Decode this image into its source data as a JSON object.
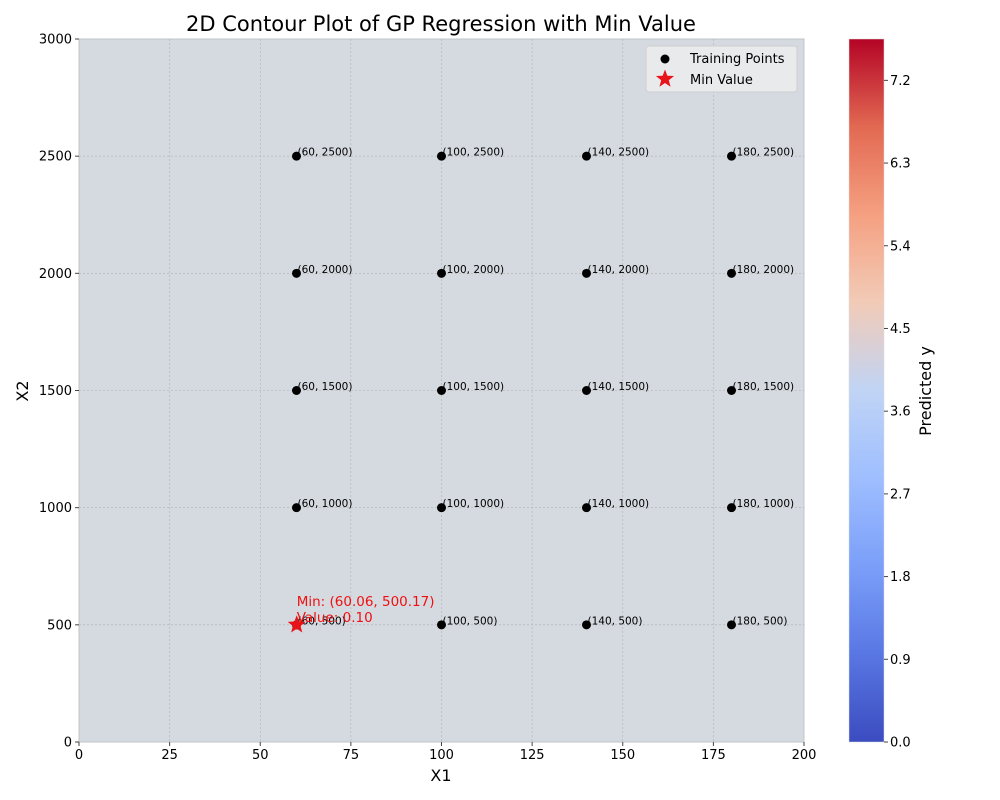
{
  "chart_data": {
    "type": "contour",
    "title": "2D Contour Plot of GP Regression with Min Value",
    "xlabel": "X1",
    "ylabel": "X2",
    "xlim": [
      0,
      200
    ],
    "ylim": [
      0,
      3000
    ],
    "xticks": [
      "0",
      "25",
      "50",
      "75",
      "100",
      "125",
      "150",
      "175",
      "200"
    ],
    "yticks": [
      "0",
      "500",
      "1000",
      "1500",
      "2000",
      "2500",
      "3000"
    ],
    "grid": true,
    "legend_position": "top-right",
    "legend": {
      "training": "Training Points",
      "min": "Min Value"
    },
    "training_points": [
      {
        "x": 60,
        "y": 2500,
        "label": "(60, 2500)"
      },
      {
        "x": 100,
        "y": 2500,
        "label": "(100, 2500)"
      },
      {
        "x": 140,
        "y": 2500,
        "label": "(140, 2500)"
      },
      {
        "x": 180,
        "y": 2500,
        "label": "(180, 2500)"
      },
      {
        "x": 60,
        "y": 2000,
        "label": "(60, 2000)"
      },
      {
        "x": 100,
        "y": 2000,
        "label": "(100, 2000)"
      },
      {
        "x": 140,
        "y": 2000,
        "label": "(140, 2000)"
      },
      {
        "x": 180,
        "y": 2000,
        "label": "(180, 2000)"
      },
      {
        "x": 60,
        "y": 1500,
        "label": "(60, 1500)"
      },
      {
        "x": 100,
        "y": 1500,
        "label": "(100, 1500)"
      },
      {
        "x": 140,
        "y": 1500,
        "label": "(140, 1500)"
      },
      {
        "x": 180,
        "y": 1500,
        "label": "(180, 1500)"
      },
      {
        "x": 60,
        "y": 1000,
        "label": "(60, 1000)"
      },
      {
        "x": 100,
        "y": 1000,
        "label": "(100, 1000)"
      },
      {
        "x": 140,
        "y": 1000,
        "label": "(140, 1000)"
      },
      {
        "x": 180,
        "y": 1000,
        "label": "(180, 1000)"
      },
      {
        "x": 60,
        "y": 500,
        "label": "(60, 500)"
      },
      {
        "x": 100,
        "y": 500,
        "label": "(100, 500)"
      },
      {
        "x": 140,
        "y": 500,
        "label": "(140, 500)"
      },
      {
        "x": 180,
        "y": 500,
        "label": "(180, 500)"
      }
    ],
    "min_point": {
      "x": 60.06,
      "y": 500.17,
      "label_line1": "Min: (60.06, 500.17)",
      "label_line2": "Value: 0.10"
    },
    "background_value": 3.8,
    "colorbar": {
      "label": "Predicted y",
      "range": [
        0.0,
        7.65
      ],
      "ticks": [
        "0.0",
        "0.9",
        "1.8",
        "2.7",
        "3.6",
        "4.5",
        "5.4",
        "6.3",
        "7.2"
      ],
      "colormap": "coolwarm"
    },
    "colors": {
      "plot_background": "#d5dae0",
      "training_marker": "#000000",
      "min_marker": "#e8141a",
      "min_text": "#ee1111",
      "grid": "#b0b0b0"
    }
  }
}
